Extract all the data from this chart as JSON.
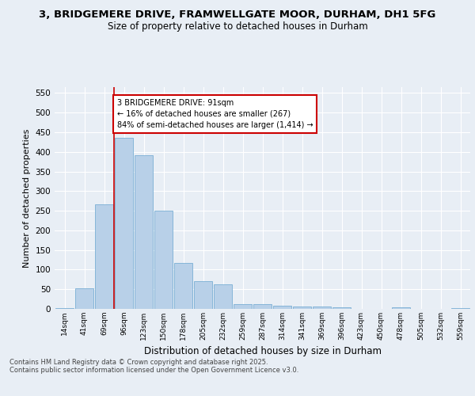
{
  "title_line1": "3, BRIDGEMERE DRIVE, FRAMWELLGATE MOOR, DURHAM, DH1 5FG",
  "title_line2": "Size of property relative to detached houses in Durham",
  "xlabel": "Distribution of detached houses by size in Durham",
  "ylabel": "Number of detached properties",
  "categories": [
    "14sqm",
    "41sqm",
    "69sqm",
    "96sqm",
    "123sqm",
    "150sqm",
    "178sqm",
    "205sqm",
    "232sqm",
    "259sqm",
    "287sqm",
    "314sqm",
    "341sqm",
    "369sqm",
    "396sqm",
    "423sqm",
    "450sqm",
    "478sqm",
    "505sqm",
    "532sqm",
    "559sqm"
  ],
  "values": [
    3,
    52,
    267,
    435,
    392,
    251,
    117,
    70,
    63,
    13,
    13,
    9,
    7,
    6,
    5,
    1,
    0,
    4,
    1,
    1,
    3
  ],
  "bar_color": "#b8d0e8",
  "bar_edge_color": "#7aafd4",
  "vline_color": "#cc0000",
  "vline_bin_index": 2,
  "annotation_text": "3 BRIDGEMERE DRIVE: 91sqm\n← 16% of detached houses are smaller (267)\n84% of semi-detached houses are larger (1,414) →",
  "annotation_box_color": "#cc0000",
  "ylim": [
    0,
    565
  ],
  "yticks": [
    0,
    50,
    100,
    150,
    200,
    250,
    300,
    350,
    400,
    450,
    500,
    550
  ],
  "footer_line1": "Contains HM Land Registry data © Crown copyright and database right 2025.",
  "footer_line2": "Contains public sector information licensed under the Open Government Licence v3.0.",
  "bg_color": "#e8eef5",
  "plot_bg_color": "#e8eef5",
  "grid_color": "#ffffff"
}
